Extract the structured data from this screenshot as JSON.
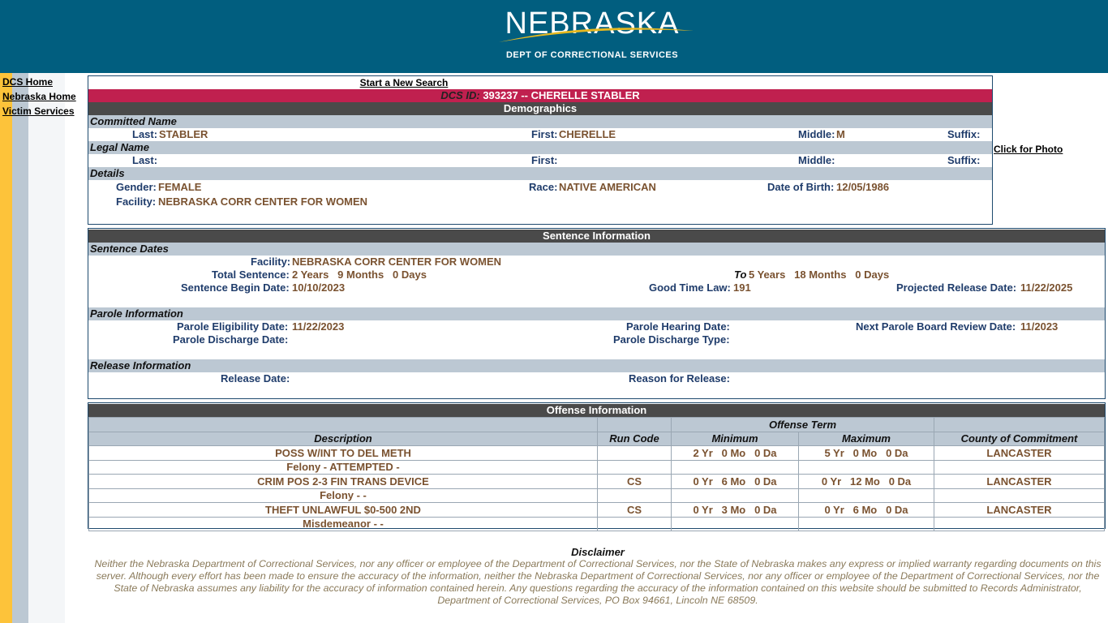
{
  "header": {
    "logo_text": "NEBRASKA",
    "subtitle": "DEPT OF CORRECTIONAL SERVICES",
    "bg": "#015e7f"
  },
  "nav": [
    {
      "label": "DCS Home"
    },
    {
      "label": "Nebraska Home"
    },
    {
      "label": "Victim Services"
    }
  ],
  "demographics": {
    "new_search": "Start a New Search",
    "id_label": "DCS ID:",
    "id_value": "393237 -- CHERELLE STABLER",
    "title": "Demographics",
    "committed_name": "Committed Name",
    "legal_name": "Legal Name",
    "details": "Details",
    "labels": {
      "last": "Last:",
      "first": "First:",
      "middle": "Middle:",
      "suffix": "Suffix:",
      "gender": "Gender:",
      "race": "Race:",
      "dob": "Date of Birth:",
      "facility": "Facility:"
    },
    "committed": {
      "last": "STABLER",
      "first": "CHERELLE",
      "middle": "M",
      "suffix": ""
    },
    "gender": "FEMALE",
    "race": "NATIVE AMERICAN",
    "dob": "12/05/1986",
    "facility": "NEBRASKA CORR CENTER FOR WOMEN",
    "photo_link": "Click for Photo"
  },
  "sentence": {
    "title": "Sentence Information",
    "dates_title": "Sentence Dates",
    "facility_label": "Facility:",
    "facility": "NEBRASKA CORR CENTER FOR WOMEN",
    "total_label": "Total Sentence:",
    "total": "2 Years   9 Months   0 Days",
    "to_label": "To",
    "to": "5 Years   18 Months   0 Days",
    "begin_label": "Sentence Begin Date:",
    "begin": "10/10/2023",
    "gtl_label": "Good Time Law:",
    "gtl": "191",
    "prd_label": "Projected Release Date:",
    "prd": "11/22/2025",
    "parole_title": "Parole Information",
    "ped_label": "Parole Eligibility Date:",
    "ped": "11/22/2023",
    "phd_label": "Parole Hearing Date:",
    "npbr_label": "Next Parole Board Review Date:",
    "npbr": "11/2023",
    "pdd_label": "Parole Discharge Date:",
    "pdt_label": "Parole Discharge Type:",
    "release_title": "Release Information",
    "rd_label": "Release Date:",
    "rr_label": "Reason for Release:"
  },
  "offense": {
    "title": "Offense Information",
    "term": "Offense Term",
    "headers": [
      "Description",
      "Run Code",
      "Minimum",
      "Maximum",
      "County of Commitment"
    ],
    "rows": [
      {
        "desc": "POSS W/INT TO DEL METH",
        "class": "Felony - ATTEMPTED -",
        "run": "",
        "min": "2 Yr   0 Mo   0 Da",
        "max": "5 Yr   0 Mo   0 Da",
        "county": "LANCASTER"
      },
      {
        "desc": "CRIM POS 2-3 FIN TRANS DEVICE",
        "class": "Felony - -",
        "run": "CS",
        "min": "0 Yr   6 Mo   0 Da",
        "max": "0 Yr   12 Mo   0 Da",
        "county": "LANCASTER"
      },
      {
        "desc": "THEFT UNLAWFUL $0-500 2ND",
        "class": "Misdemeanor - -",
        "run": "CS",
        "min": "0 Yr   3 Mo   0 Da",
        "max": "0 Yr   6 Mo   0 Da",
        "county": "LANCASTER"
      }
    ]
  },
  "disclaimer": {
    "title": "Disclaimer",
    "text": "Neither the Nebraska Department of Correctional Services, nor any officer or employee of the Department of Correctional Services, nor the State of Nebraska makes any express or implied warranty regarding documents on this server. Although every effort has been made to ensure the accuracy of the information, neither the Nebraska Department of Correctional Services, nor any officer or employee of the Department of Correctional Services, nor the State of Nebraska assumes any liability for the accuracy of information contained herein. Any questions regarding the accuracy of the information contained on this website should be submitted to Records Administrator, Department of Correctional Services, PO Box 94661, Lincoln NE 68509."
  }
}
